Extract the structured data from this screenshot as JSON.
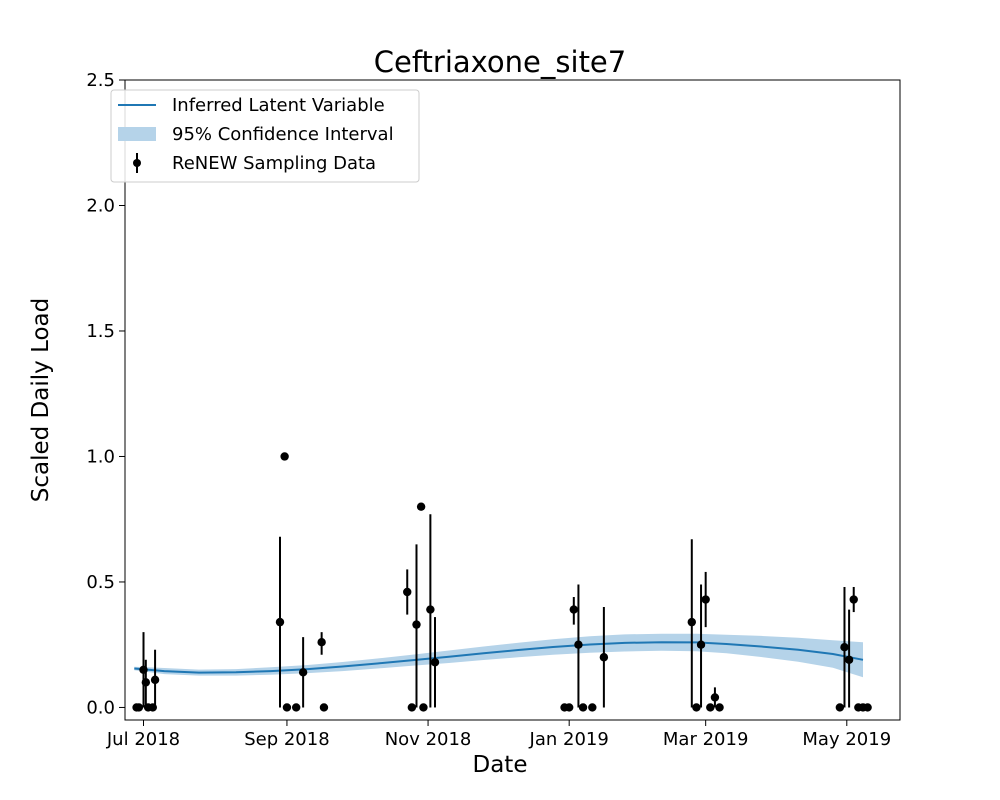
{
  "chart_data": {
    "type": "line",
    "title": "Ceftriaxone_site7",
    "xlabel": "Date",
    "ylabel": "Scaled Daily Load",
    "ylim": [
      -0.05,
      2.5
    ],
    "xlim": [
      "2018-06-23",
      "2019-05-24"
    ],
    "yticks": [
      0.0,
      0.5,
      1.0,
      1.5,
      2.0,
      2.5
    ],
    "ytick_labels": [
      "0.0",
      "0.5",
      "1.0",
      "1.5",
      "2.0",
      "2.5"
    ],
    "xticks": [
      "2018-07-01",
      "2018-09-01",
      "2018-11-01",
      "2019-01-01",
      "2019-03-01",
      "2019-05-01"
    ],
    "xtick_labels": [
      "Jul 2018",
      "Sep 2018",
      "Nov 2018",
      "Jan 2019",
      "Mar 2019",
      "May 2019"
    ],
    "grid": false,
    "legend_position": "top-left",
    "legend": [
      {
        "label": "Inferred Latent Variable",
        "kind": "line"
      },
      {
        "label": "95% Confidence Interval",
        "kind": "band"
      },
      {
        "label": "ReNEW Sampling Data",
        "kind": "errorbar"
      }
    ],
    "colors": {
      "line": "#1f77b4",
      "band": "#b5d3e9",
      "points": "#000000"
    },
    "latent": [
      {
        "x": "2018-06-27",
        "y": 0.155,
        "lo": 0.148,
        "hi": 0.162
      },
      {
        "x": "2018-07-10",
        "y": 0.145,
        "lo": 0.133,
        "hi": 0.157
      },
      {
        "x": "2018-07-25",
        "y": 0.139,
        "lo": 0.127,
        "hi": 0.151
      },
      {
        "x": "2018-08-10",
        "y": 0.14,
        "lo": 0.127,
        "hi": 0.153
      },
      {
        "x": "2018-08-25",
        "y": 0.145,
        "lo": 0.13,
        "hi": 0.16
      },
      {
        "x": "2018-09-10",
        "y": 0.153,
        "lo": 0.137,
        "hi": 0.169
      },
      {
        "x": "2018-09-25",
        "y": 0.163,
        "lo": 0.145,
        "hi": 0.181
      },
      {
        "x": "2018-10-10",
        "y": 0.175,
        "lo": 0.155,
        "hi": 0.195
      },
      {
        "x": "2018-10-25",
        "y": 0.188,
        "lo": 0.166,
        "hi": 0.21
      },
      {
        "x": "2018-11-10",
        "y": 0.202,
        "lo": 0.177,
        "hi": 0.227
      },
      {
        "x": "2018-11-25",
        "y": 0.216,
        "lo": 0.189,
        "hi": 0.243
      },
      {
        "x": "2018-12-10",
        "y": 0.229,
        "lo": 0.2,
        "hi": 0.258
      },
      {
        "x": "2018-12-25",
        "y": 0.241,
        "lo": 0.21,
        "hi": 0.272
      },
      {
        "x": "2019-01-10",
        "y": 0.251,
        "lo": 0.218,
        "hi": 0.284
      },
      {
        "x": "2019-01-25",
        "y": 0.257,
        "lo": 0.223,
        "hi": 0.291
      },
      {
        "x": "2019-02-10",
        "y": 0.26,
        "lo": 0.226,
        "hi": 0.294
      },
      {
        "x": "2019-02-25",
        "y": 0.259,
        "lo": 0.224,
        "hi": 0.294
      },
      {
        "x": "2019-03-10",
        "y": 0.253,
        "lo": 0.216,
        "hi": 0.29
      },
      {
        "x": "2019-03-25",
        "y": 0.243,
        "lo": 0.201,
        "hi": 0.285
      },
      {
        "x": "2019-04-10",
        "y": 0.23,
        "lo": 0.182,
        "hi": 0.278
      },
      {
        "x": "2019-04-25",
        "y": 0.213,
        "lo": 0.158,
        "hi": 0.268
      },
      {
        "x": "2019-05-08",
        "y": 0.19,
        "lo": 0.12,
        "hi": 0.26
      }
    ],
    "points": [
      {
        "x": "2018-06-28",
        "y": 0.0
      },
      {
        "x": "2018-06-29",
        "y": 0.0
      },
      {
        "x": "2018-07-01",
        "y": 0.15,
        "lo": 0.0,
        "hi": 0.3
      },
      {
        "x": "2018-07-02",
        "y": 0.1,
        "lo": 0.0,
        "hi": 0.19
      },
      {
        "x": "2018-07-03",
        "y": 0.0
      },
      {
        "x": "2018-07-05",
        "y": 0.0
      },
      {
        "x": "2018-07-06",
        "y": 0.11,
        "lo": 0.0,
        "hi": 0.23
      },
      {
        "x": "2018-08-29",
        "y": 0.34,
        "lo": 0.0,
        "hi": 0.68
      },
      {
        "x": "2018-08-31",
        "y": 1.0
      },
      {
        "x": "2018-09-01",
        "y": 0.0
      },
      {
        "x": "2018-09-05",
        "y": 0.0
      },
      {
        "x": "2018-09-08",
        "y": 0.14,
        "lo": 0.0,
        "hi": 0.28
      },
      {
        "x": "2018-09-16",
        "y": 0.26,
        "lo": 0.21,
        "hi": 0.3
      },
      {
        "x": "2018-09-17",
        "y": 0.0
      },
      {
        "x": "2018-10-23",
        "y": 0.46,
        "lo": 0.37,
        "hi": 0.55
      },
      {
        "x": "2018-10-25",
        "y": 0.0
      },
      {
        "x": "2018-10-27",
        "y": 0.33,
        "lo": 0.0,
        "hi": 0.65
      },
      {
        "x": "2018-10-29",
        "y": 0.8
      },
      {
        "x": "2018-10-30",
        "y": 0.0
      },
      {
        "x": "2018-11-02",
        "y": 0.39,
        "lo": 0.0,
        "hi": 0.77
      },
      {
        "x": "2018-11-04",
        "y": 0.18,
        "lo": 0.0,
        "hi": 0.36
      },
      {
        "x": "2018-12-30",
        "y": 0.0
      },
      {
        "x": "2019-01-01",
        "y": 0.0
      },
      {
        "x": "2019-01-03",
        "y": 0.39,
        "lo": 0.33,
        "hi": 0.44
      },
      {
        "x": "2019-01-05",
        "y": 0.25,
        "lo": 0.0,
        "hi": 0.49
      },
      {
        "x": "2019-01-07",
        "y": 0.0
      },
      {
        "x": "2019-01-11",
        "y": 0.0
      },
      {
        "x": "2019-01-16",
        "y": 0.2,
        "lo": 0.0,
        "hi": 0.4
      },
      {
        "x": "2019-02-23",
        "y": 0.34,
        "lo": 0.0,
        "hi": 0.67
      },
      {
        "x": "2019-02-25",
        "y": 0.0
      },
      {
        "x": "2019-02-27",
        "y": 0.25,
        "lo": 0.0,
        "hi": 0.49
      },
      {
        "x": "2019-03-01",
        "y": 0.43,
        "lo": 0.32,
        "hi": 0.54
      },
      {
        "x": "2019-03-03",
        "y": 0.0
      },
      {
        "x": "2019-03-05",
        "y": 0.04,
        "lo": 0.0,
        "hi": 0.08
      },
      {
        "x": "2019-03-07",
        "y": 0.0
      },
      {
        "x": "2019-04-28",
        "y": 0.0
      },
      {
        "x": "2019-04-30",
        "y": 0.24,
        "lo": 0.0,
        "hi": 0.48
      },
      {
        "x": "2019-05-02",
        "y": 0.19,
        "lo": 0.0,
        "hi": 0.39
      },
      {
        "x": "2019-05-04",
        "y": 0.43,
        "lo": 0.38,
        "hi": 0.48
      },
      {
        "x": "2019-05-06",
        "y": 0.0
      },
      {
        "x": "2019-05-08",
        "y": 0.0
      },
      {
        "x": "2019-05-10",
        "y": 0.0
      }
    ]
  }
}
